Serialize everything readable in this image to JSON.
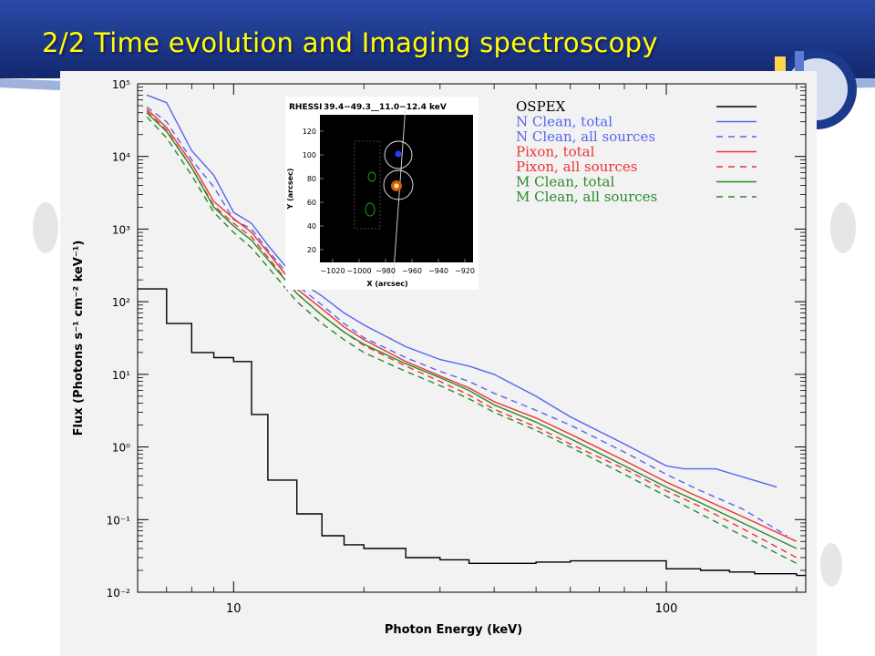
{
  "slide": {
    "title": "2/2  Time evolution and Imaging spectroscopy",
    "title_color": "#ffff00",
    "header_color": "#1c3a8c"
  },
  "chart_data": {
    "type": "line",
    "title": "",
    "xlabel": "Photon Energy (keV)",
    "ylabel": "Flux (Photons s⁻¹ cm⁻² keV⁻¹)",
    "xscale": "log",
    "yscale": "log",
    "xlim": [
      6,
      210
    ],
    "ylim": [
      0.01,
      100000
    ],
    "x_tick_labels": [
      "10",
      "100"
    ],
    "y_tick_labels": [
      "10⁻²",
      "10⁻¹",
      "10⁰",
      "10¹",
      "10²",
      "10³",
      "10⁴",
      "10⁵"
    ],
    "legend_position": "top-right",
    "grid": false,
    "series": [
      {
        "name": "OSPEX",
        "color": "#000000",
        "style": "step",
        "points": [
          [
            6,
            150
          ],
          [
            7,
            50
          ],
          [
            8,
            20
          ],
          [
            9,
            17
          ],
          [
            10,
            15
          ],
          [
            11,
            2.8
          ],
          [
            12,
            0.35
          ],
          [
            14,
            0.12
          ],
          [
            16,
            0.06
          ],
          [
            18,
            0.045
          ],
          [
            20,
            0.04
          ],
          [
            25,
            0.03
          ],
          [
            30,
            0.028
          ],
          [
            35,
            0.025
          ],
          [
            40,
            0.025
          ],
          [
            50,
            0.026
          ],
          [
            60,
            0.027
          ],
          [
            70,
            0.027
          ],
          [
            80,
            0.027
          ],
          [
            90,
            0.027
          ],
          [
            100,
            0.021
          ],
          [
            120,
            0.02
          ],
          [
            140,
            0.019
          ],
          [
            160,
            0.018
          ],
          [
            200,
            0.017
          ]
        ]
      },
      {
        "name": "N Clean, total",
        "color": "#5566ee",
        "style": "solid",
        "points": [
          [
            6.3,
            70000
          ],
          [
            7,
            55000
          ],
          [
            8,
            12000
          ],
          [
            9,
            5500
          ],
          [
            10,
            1700
          ],
          [
            11,
            1200
          ],
          [
            12,
            600
          ],
          [
            14,
            200
          ],
          [
            16,
            120
          ],
          [
            18,
            70
          ],
          [
            20,
            48
          ],
          [
            25,
            24
          ],
          [
            30,
            16
          ],
          [
            35,
            13
          ],
          [
            40,
            10
          ],
          [
            50,
            5
          ],
          [
            60,
            2.6
          ],
          [
            80,
            1.1
          ],
          [
            100,
            0.55
          ],
          [
            110,
            0.5
          ],
          [
            130,
            0.5
          ],
          [
            180,
            0.28
          ]
        ]
      },
      {
        "name": "N Clean, all sources",
        "color": "#5566ee",
        "style": "dashed",
        "points": [
          [
            6.3,
            48000
          ],
          [
            7,
            30000
          ],
          [
            8,
            9000
          ],
          [
            9,
            3800
          ],
          [
            10,
            1350
          ],
          [
            11,
            1000
          ],
          [
            12,
            510
          ],
          [
            14,
            170
          ],
          [
            16,
            90
          ],
          [
            18,
            50
          ],
          [
            20,
            32
          ],
          [
            25,
            17
          ],
          [
            30,
            11
          ],
          [
            35,
            8
          ],
          [
            40,
            5.5
          ],
          [
            50,
            3.2
          ],
          [
            60,
            2
          ],
          [
            80,
            0.85
          ],
          [
            100,
            0.42
          ],
          [
            120,
            0.25
          ],
          [
            150,
            0.14
          ],
          [
            190,
            0.06
          ]
        ]
      },
      {
        "name": "Pixon, total",
        "color": "#ee3333",
        "style": "solid",
        "points": [
          [
            6.3,
            45000
          ],
          [
            7,
            25000
          ],
          [
            8,
            8000
          ],
          [
            9,
            2400
          ],
          [
            10,
            1400
          ],
          [
            11,
            900
          ],
          [
            12,
            480
          ],
          [
            14,
            150
          ],
          [
            16,
            80
          ],
          [
            18,
            45
          ],
          [
            20,
            30
          ],
          [
            25,
            15
          ],
          [
            30,
            9.5
          ],
          [
            35,
            6.5
          ],
          [
            40,
            4.2
          ],
          [
            50,
            2.5
          ],
          [
            60,
            1.5
          ],
          [
            80,
            0.65
          ],
          [
            100,
            0.33
          ],
          [
            120,
            0.2
          ],
          [
            150,
            0.11
          ],
          [
            200,
            0.05
          ]
        ]
      },
      {
        "name": "Pixon, all sources",
        "color": "#ee3333",
        "style": "dashed",
        "points": [
          [
            6.3,
            42000
          ],
          [
            7,
            23000
          ],
          [
            8,
            7000
          ],
          [
            9,
            2100
          ],
          [
            10,
            1200
          ],
          [
            11,
            780
          ],
          [
            12,
            410
          ],
          [
            14,
            130
          ],
          [
            16,
            65
          ],
          [
            18,
            38
          ],
          [
            20,
            25
          ],
          [
            25,
            13
          ],
          [
            30,
            8
          ],
          [
            35,
            5.2
          ],
          [
            40,
            3.3
          ],
          [
            50,
            1.9
          ],
          [
            60,
            1.1
          ],
          [
            80,
            0.5
          ],
          [
            100,
            0.25
          ],
          [
            120,
            0.15
          ],
          [
            150,
            0.075
          ],
          [
            200,
            0.03
          ]
        ]
      },
      {
        "name": "M Clean, total",
        "color": "#2a8a2a",
        "style": "solid",
        "points": [
          [
            6.3,
            40000
          ],
          [
            7,
            22000
          ],
          [
            8,
            7000
          ],
          [
            9,
            2000
          ],
          [
            10,
            1100
          ],
          [
            11,
            700
          ],
          [
            12,
            380
          ],
          [
            14,
            130
          ],
          [
            16,
            65
          ],
          [
            18,
            38
          ],
          [
            20,
            26
          ],
          [
            25,
            14
          ],
          [
            30,
            9
          ],
          [
            35,
            6
          ],
          [
            40,
            3.8
          ],
          [
            50,
            2.2
          ],
          [
            60,
            1.3
          ],
          [
            80,
            0.55
          ],
          [
            100,
            0.28
          ],
          [
            120,
            0.17
          ],
          [
            150,
            0.09
          ],
          [
            200,
            0.04
          ]
        ]
      },
      {
        "name": "M Clean, all sources",
        "color": "#2a8a2a",
        "style": "dashed",
        "points": [
          [
            6.3,
            35000
          ],
          [
            7,
            18000
          ],
          [
            8,
            5500
          ],
          [
            9,
            1700
          ],
          [
            10,
            900
          ],
          [
            11,
            550
          ],
          [
            12,
            300
          ],
          [
            14,
            100
          ],
          [
            16,
            50
          ],
          [
            18,
            30
          ],
          [
            20,
            20
          ],
          [
            25,
            11
          ],
          [
            30,
            7
          ],
          [
            35,
            4.6
          ],
          [
            40,
            3
          ],
          [
            50,
            1.7
          ],
          [
            60,
            1
          ],
          [
            80,
            0.42
          ],
          [
            100,
            0.21
          ],
          [
            120,
            0.12
          ],
          [
            150,
            0.06
          ],
          [
            200,
            0.025
          ]
        ]
      }
    ],
    "inset": {
      "title_left": "RHESSI",
      "title_right": "39.4−49.3__11.0−12.4 keV",
      "xlabel": "X (arcsec)",
      "ylabel": "Y (arcsec)",
      "x_ticks": [
        "−1020",
        "−1000",
        "−980",
        "−960",
        "−940",
        "−920"
      ],
      "y_ticks": [
        "20",
        "40",
        "60",
        "80",
        "100",
        "120"
      ]
    }
  }
}
